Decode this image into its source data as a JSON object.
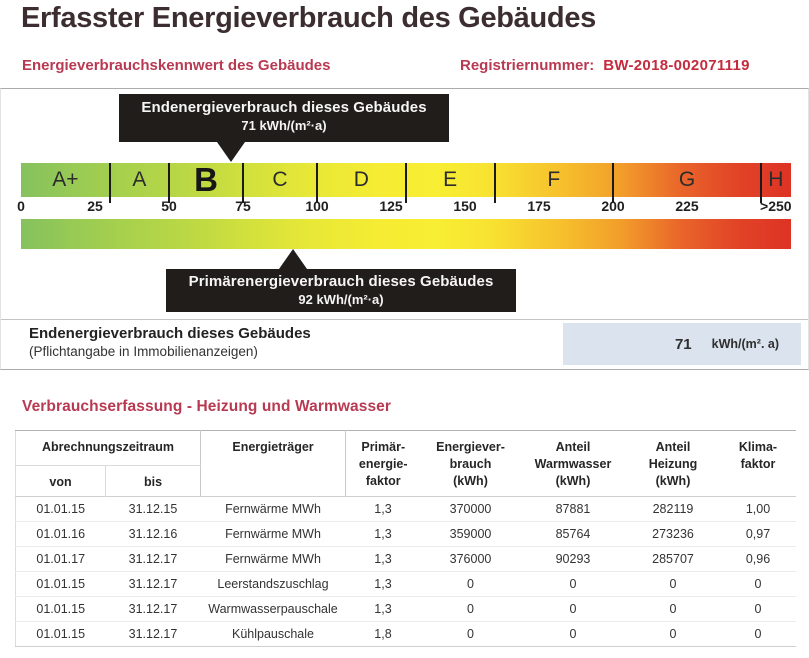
{
  "header": {
    "title": "Erfasster Energieverbrauch des Gebäudes",
    "subtitle": "Energieverbrauchskennwert des Gebäudes",
    "registration_label": "Registriernummer:",
    "registration_value": "BW-2018-002071119"
  },
  "callouts": {
    "end_energy": {
      "title": "Endenergieverbrauch dieses Gebäudes",
      "value": 71,
      "value_text": "71 kWh/(m²·a)"
    },
    "primary_energy": {
      "title": "Primärenergieverbrauch dieses Gebäudes",
      "value": 92,
      "value_text": "92 kWh/(m²·a)"
    }
  },
  "scale": {
    "bands": [
      {
        "label": "A+",
        "min": 0
      },
      {
        "label": "A",
        "min": 30
      },
      {
        "label": "B",
        "min": 50,
        "current": true
      },
      {
        "label": "C",
        "min": 75
      },
      {
        "label": "D",
        "min": 100
      },
      {
        "label": "E",
        "min": 130
      },
      {
        "label": "F",
        "min": 160
      },
      {
        "label": "G",
        "min": 200
      },
      {
        "label": "H",
        "min": 250
      }
    ],
    "tick_labels": [
      "0",
      "25",
      "50",
      "75",
      "100",
      "125",
      "150",
      "175",
      "200",
      "225",
      ">250"
    ],
    "gradient_stops": [
      "#85c15e 0%",
      "#96c955 6%",
      "#a9d14c 14%",
      "#bcd844 22%",
      "#d3e13c 30%",
      "#e9e836 38%",
      "#f5ec33 46%",
      "#f8ee33 54%",
      "#f8e231 61%",
      "#f6c12d 70%",
      "#f29d2a 78%",
      "#e9632a 86%",
      "#e14427 93%",
      "#de3325 100%"
    ]
  },
  "result_row": {
    "label": "Endenergieverbrauch dieses Gebäudes",
    "note": "(Pflichtangabe in Immobilienanzeigen)",
    "value": "71",
    "unit": "kWh/(m². a)"
  },
  "section": {
    "title": "Verbrauchserfassung - Heizung und Warmwasser"
  },
  "table": {
    "header": {
      "period": "Abrechnungszeitraum",
      "from": "von",
      "to": "bis",
      "energy_source": "Energieträger",
      "primary_factor": "Primär-\nenergie-\nfaktor",
      "consumption": "Energiever-\nbrauch\n(kWh)",
      "hot_water_share": "Anteil\nWarmwasser\n(kWh)",
      "heating_share": "Anteil\nHeizung\n(kWh)",
      "climate_factor": "Klima-\nfaktor"
    },
    "rows": [
      [
        "01.01.15",
        "31.12.15",
        "Fernwärme MWh",
        "1,3",
        "370000",
        "87881",
        "282119",
        "1,00"
      ],
      [
        "01.01.16",
        "31.12.16",
        "Fernwärme MWh",
        "1,3",
        "359000",
        "85764",
        "273236",
        "0,97"
      ],
      [
        "01.01.17",
        "31.12.17",
        "Fernwärme MWh",
        "1,3",
        "376000",
        "90293",
        "285707",
        "0,96"
      ],
      [
        "01.01.15",
        "31.12.17",
        "Leerstandszuschlag",
        "1,3",
        "0",
        "0",
        "0",
        "0"
      ],
      [
        "01.01.15",
        "31.12.17",
        "Warmwasserpauschale",
        "1,3",
        "0",
        "0",
        "0",
        "0"
      ],
      [
        "01.01.15",
        "31.12.17",
        "Kühlpauschale",
        "1,8",
        "0",
        "0",
        "0",
        "0"
      ]
    ]
  },
  "colors": {
    "title_text": "#3c2e30",
    "accent_red": "#b83a52",
    "registration_red": "#c42b3d",
    "callout_bg": "#201d1b",
    "callout_text": "#f5f5f4",
    "value_box_bg": "#dbe3ef",
    "band_border": "#1a1a1a"
  }
}
